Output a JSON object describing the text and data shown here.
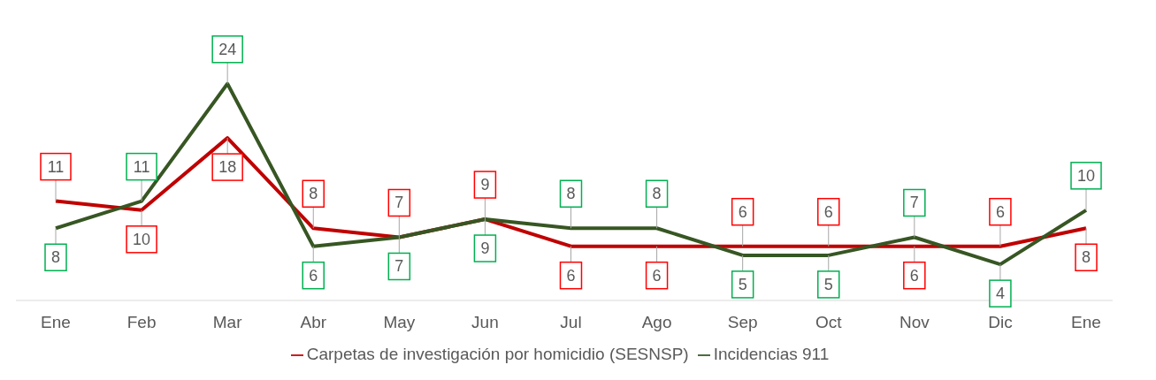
{
  "chart_data": {
    "type": "line",
    "categories": [
      "Ene",
      "Feb",
      "Mar",
      "Abr",
      "May",
      "Jun",
      "Jul",
      "Ago",
      "Sep",
      "Oct",
      "Nov",
      "Dic",
      "Ene"
    ],
    "series": [
      {
        "name": "Carpetas de investigación por homicidio (SESNSP)",
        "color": "#c00000",
        "values": [
          11,
          10,
          18,
          8,
          7,
          9,
          6,
          6,
          6,
          6,
          6,
          6,
          8
        ]
      },
      {
        "name": "Incidencias 911",
        "color": "#375623",
        "values": [
          8,
          11,
          24,
          6,
          7,
          9,
          8,
          8,
          5,
          5,
          7,
          4,
          10
        ]
      }
    ],
    "data_labels": true,
    "legend": "bottom",
    "marker": "none",
    "line_style": "solid"
  }
}
